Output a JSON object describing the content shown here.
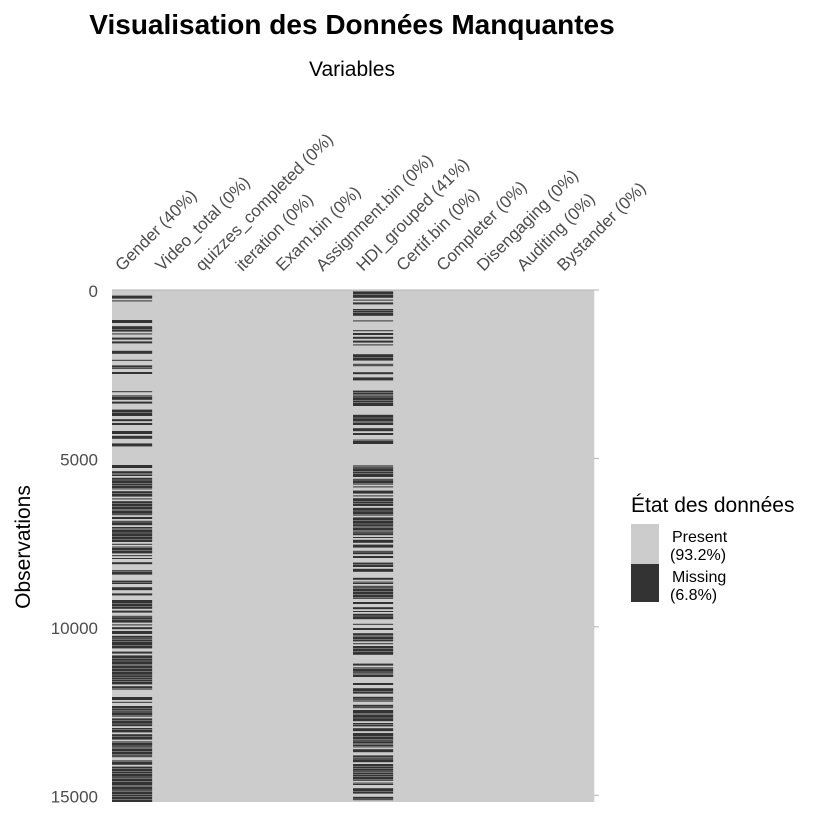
{
  "chart_data": {
    "type": "heatmap",
    "title": "Visualisation des Données Manquantes",
    "xlabel": "Variables",
    "ylabel": "Observations",
    "ylim": [
      0,
      15200
    ],
    "y_ticks": [
      0,
      5000,
      10000,
      15000
    ],
    "variables": [
      {
        "name": "Gender",
        "missing_pct": 40,
        "label": "Gender (40%)"
      },
      {
        "name": "Video_total",
        "missing_pct": 0,
        "label": "Video_total (0%)"
      },
      {
        "name": "quizzes_completed",
        "missing_pct": 0,
        "label": "quizzes_completed (0%)"
      },
      {
        "name": "iteration",
        "missing_pct": 0,
        "label": "iteration (0%)"
      },
      {
        "name": "Exam.bin",
        "missing_pct": 0,
        "label": "Exam.bin (0%)"
      },
      {
        "name": "Assignment.bin",
        "missing_pct": 0,
        "label": "Assignment.bin (0%)"
      },
      {
        "name": "HDI_grouped",
        "missing_pct": 41,
        "label": "HDI_grouped (41%)"
      },
      {
        "name": "Certif.bin",
        "missing_pct": 0,
        "label": "Certif.bin (0%)"
      },
      {
        "name": "Completer",
        "missing_pct": 0,
        "label": "Completer (0%)"
      },
      {
        "name": "Disengaging",
        "missing_pct": 0,
        "label": "Disengaging (0%)"
      },
      {
        "name": "Auditing",
        "missing_pct": 0,
        "label": "Auditing (0%)"
      },
      {
        "name": "Bystander",
        "missing_pct": 0,
        "label": "Bystander (0%)"
      }
    ],
    "legend": {
      "title": "État des données",
      "position": "right",
      "items": [
        {
          "key": "present",
          "line1": "Present",
          "line2": "(93.2%)",
          "color": "#cccccc"
        },
        {
          "key": "missing",
          "line1": "Missing",
          "line2": "(6.8%)",
          "color": "#333333"
        }
      ]
    },
    "colors": {
      "present": "#cccccc",
      "missing": "#333333",
      "title": "#000000",
      "axis_text": "#4d4d4d",
      "tick": "#b3b3b3"
    }
  }
}
